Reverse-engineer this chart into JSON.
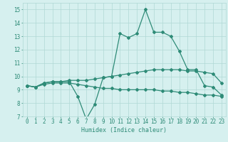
{
  "x": [
    0,
    1,
    2,
    3,
    4,
    5,
    6,
    7,
    8,
    9,
    10,
    11,
    12,
    13,
    14,
    15,
    16,
    17,
    18,
    19,
    20,
    21,
    22,
    23
  ],
  "line1": [
    9.3,
    9.2,
    9.5,
    9.6,
    9.6,
    9.6,
    8.5,
    6.8,
    7.9,
    9.9,
    10.0,
    13.2,
    12.9,
    13.2,
    15.0,
    13.3,
    13.3,
    13.0,
    11.9,
    10.5,
    10.5,
    9.3,
    9.2,
    8.6
  ],
  "line2": [
    9.3,
    9.2,
    9.5,
    9.6,
    9.6,
    9.7,
    9.7,
    9.7,
    9.8,
    9.9,
    10.0,
    10.1,
    10.2,
    10.3,
    10.4,
    10.5,
    10.5,
    10.5,
    10.5,
    10.4,
    10.4,
    10.3,
    10.2,
    9.5
  ],
  "line3": [
    9.3,
    9.2,
    9.4,
    9.5,
    9.5,
    9.5,
    9.4,
    9.3,
    9.2,
    9.1,
    9.1,
    9.0,
    9.0,
    9.0,
    9.0,
    9.0,
    8.9,
    8.9,
    8.8,
    8.8,
    8.7,
    8.6,
    8.6,
    8.5
  ],
  "color": "#2e8b77",
  "bg_color": "#d6f0ef",
  "grid_color": "#b0d8d5",
  "xlabel": "Humidex (Indice chaleur)",
  "ylim": [
    7,
    15.5
  ],
  "xlim": [
    -0.5,
    23.5
  ],
  "yticks": [
    7,
    8,
    9,
    10,
    11,
    12,
    13,
    14,
    15
  ],
  "xticks": [
    0,
    1,
    2,
    3,
    4,
    5,
    6,
    7,
    8,
    9,
    10,
    11,
    12,
    13,
    14,
    15,
    16,
    17,
    18,
    19,
    20,
    21,
    22,
    23
  ],
  "marker": "D",
  "markersize": 2,
  "linewidth": 0.9,
  "xlabel_fontsize": 6,
  "tick_fontsize": 5.5
}
